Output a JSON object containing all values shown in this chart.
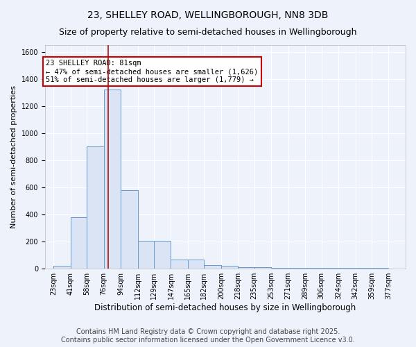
{
  "title": "23, SHELLEY ROAD, WELLINGBOROUGH, NN8 3DB",
  "subtitle": "Size of property relative to semi-detached houses in Wellingborough",
  "xlabel": "Distribution of semi-detached houses by size in Wellingborough",
  "ylabel": "Number of semi-detached properties",
  "bin_labels": [
    "23sqm",
    "41sqm",
    "58sqm",
    "76sqm",
    "94sqm",
    "112sqm",
    "129sqm",
    "147sqm",
    "165sqm",
    "182sqm",
    "200sqm",
    "218sqm",
    "235sqm",
    "253sqm",
    "271sqm",
    "289sqm",
    "306sqm",
    "324sqm",
    "342sqm",
    "359sqm",
    "377sqm"
  ],
  "bin_left_edges": [
    23,
    41,
    58,
    76,
    94,
    112,
    129,
    147,
    165,
    182,
    200,
    218,
    235,
    253,
    271,
    289,
    306,
    324,
    342,
    359,
    377
  ],
  "bar_heights": [
    20,
    380,
    900,
    1320,
    580,
    205,
    205,
    70,
    70,
    25,
    20,
    10,
    10,
    5,
    5,
    5,
    5,
    5,
    5,
    5
  ],
  "bar_color": "#dae4f5",
  "bar_edge_color": "#6699cc",
  "red_line_x": 81,
  "annotation_text": "23 SHELLEY ROAD: 81sqm\n← 47% of semi-detached houses are smaller (1,626)\n51% of semi-detached houses are larger (1,779) →",
  "annotation_box_facecolor": "#ffffff",
  "annotation_box_edgecolor": "#cc0000",
  "ylim": [
    0,
    1650
  ],
  "yticks": [
    0,
    200,
    400,
    600,
    800,
    1000,
    1200,
    1400,
    1600
  ],
  "xlim_left": 14,
  "xlim_right": 395,
  "background_color": "#edf2fb",
  "grid_color": "#ffffff",
  "footer_line1": "Contains HM Land Registry data © Crown copyright and database right 2025.",
  "footer_line2": "Contains public sector information licensed under the Open Government Licence v3.0.",
  "title_fontsize": 10,
  "subtitle_fontsize": 9,
  "ylabel_fontsize": 8,
  "xlabel_fontsize": 8.5,
  "tick_fontsize": 7,
  "footer_fontsize": 7,
  "annotation_fontsize": 7.5
}
